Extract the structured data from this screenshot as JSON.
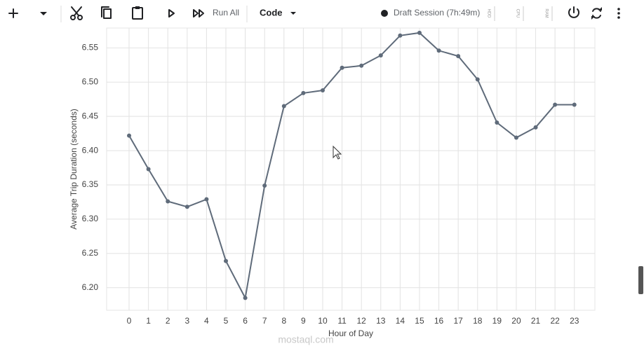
{
  "toolbar": {
    "run_all": "Run All",
    "cell_type": "Code",
    "session": "Draft Session (7h:49m)",
    "meters": [
      "HDD",
      "CPU",
      "RAM"
    ]
  },
  "chart_data": {
    "type": "line",
    "x_label": "Hour of Day",
    "y_label": "Average Trip Duration (seconds)",
    "x": [
      0,
      1,
      2,
      3,
      4,
      5,
      6,
      7,
      8,
      9,
      10,
      11,
      12,
      13,
      14,
      15,
      16,
      17,
      18,
      19,
      20,
      21,
      22,
      23
    ],
    "values": [
      6.422,
      6.373,
      6.326,
      6.318,
      6.329,
      6.239,
      6.185,
      6.349,
      6.465,
      6.484,
      6.488,
      6.521,
      6.524,
      6.539,
      6.568,
      6.572,
      6.546,
      6.538,
      6.504,
      6.441,
      6.419,
      6.434,
      6.467,
      6.467
    ],
    "color": "#5f6b7a",
    "xlim": [
      -1.16,
      24.06
    ],
    "ylim": [
      6.167,
      6.579
    ],
    "xticks": [
      0,
      1,
      2,
      3,
      4,
      5,
      6,
      7,
      8,
      9,
      10,
      11,
      12,
      13,
      14,
      15,
      16,
      17,
      18,
      19,
      20,
      21,
      22,
      23
    ],
    "yticks": [
      {
        "value": 6.2,
        "label": "6.20"
      },
      6.25,
      {
        "value": 6.3,
        "label": "6.30"
      },
      6.35,
      {
        "value": 6.4,
        "label": "6.40"
      },
      6.45,
      {
        "value": 6.5,
        "label": "6.50"
      },
      6.55
    ],
    "grid": true
  },
  "watermark": "mostaql.com"
}
